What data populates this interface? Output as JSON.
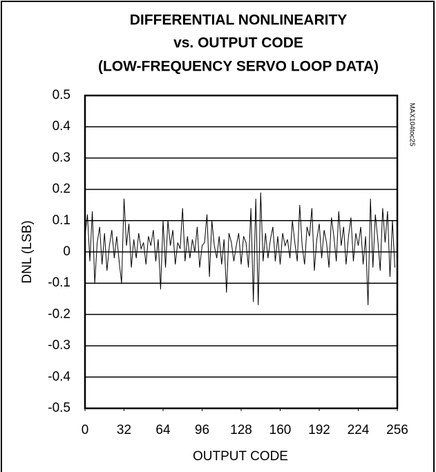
{
  "chart_data": {
    "type": "line",
    "title": [
      "DIFFERENTIAL NONLINEARITY",
      "vs. OUTPUT CODE",
      "(LOW-FREQUENCY SERVO LOOP DATA)"
    ],
    "xlabel": "OUTPUT CODE",
    "ylabel": "DNL (LSB)",
    "annotation": "MAX104toc25",
    "color": "#000000",
    "grid": true,
    "xlim": [
      0,
      256
    ],
    "xticks": [
      0,
      32,
      64,
      96,
      128,
      160,
      192,
      224,
      256
    ],
    "ylim": [
      -0.5,
      0.5
    ],
    "yticks": [
      0.5,
      0.4,
      0.3,
      0.2,
      0.1,
      0,
      -0.1,
      -0.2,
      -0.3,
      -0.4,
      -0.5
    ],
    "x": [
      0,
      2,
      4,
      6,
      8,
      10,
      12,
      14,
      16,
      18,
      20,
      22,
      24,
      26,
      28,
      30,
      32,
      34,
      36,
      38,
      40,
      42,
      44,
      46,
      48,
      50,
      52,
      54,
      56,
      58,
      60,
      62,
      64,
      66,
      68,
      70,
      72,
      74,
      76,
      78,
      80,
      82,
      84,
      86,
      88,
      90,
      92,
      94,
      96,
      98,
      100,
      102,
      104,
      106,
      108,
      110,
      112,
      114,
      116,
      118,
      120,
      122,
      124,
      126,
      128,
      130,
      132,
      134,
      136,
      138,
      140,
      142,
      144,
      146,
      148,
      150,
      152,
      154,
      156,
      158,
      160,
      162,
      164,
      166,
      168,
      170,
      172,
      174,
      176,
      178,
      180,
      182,
      184,
      186,
      188,
      190,
      192,
      194,
      196,
      198,
      200,
      202,
      204,
      206,
      208,
      210,
      212,
      214,
      216,
      218,
      220,
      222,
      224,
      226,
      228,
      230,
      232,
      234,
      236,
      238,
      240,
      242,
      244,
      246,
      248,
      250,
      252,
      254
    ],
    "values": [
      0.05,
      0.12,
      -0.03,
      0.13,
      -0.1,
      0.03,
      0.08,
      -0.04,
      0.06,
      -0.06,
      0.02,
      0.07,
      -0.02,
      0.05,
      -0.03,
      -0.1,
      0.17,
      0.02,
      0.09,
      -0.05,
      0.04,
      -0.02,
      0.06,
      0.01,
      0.03,
      -0.04,
      0.05,
      0.02,
      0.07,
      -0.03,
      0.04,
      -0.12,
      0.1,
      -0.05,
      0.1,
      0.02,
      0.07,
      -0.04,
      0.03,
      0.01,
      0.14,
      -0.03,
      0.05,
      -0.02,
      0.04,
      0.0,
      0.08,
      -0.05,
      0.02,
      0.03,
      0.12,
      -0.08,
      0.1,
      0.02,
      -0.02,
      0.05,
      -0.04,
      0.04,
      -0.13,
      0.06,
      0.03,
      -0.03,
      0.02,
      0.06,
      -0.04,
      0.05,
      0.03,
      -0.05,
      0.14,
      -0.16,
      0.17,
      -0.17,
      0.19,
      -0.03,
      0.06,
      -0.02,
      0.04,
      0.08,
      -0.03,
      0.05,
      -0.04,
      0.06,
      0.02,
      0.04,
      -0.02,
      0.1,
      0.03,
      -0.03,
      0.15,
      0.02,
      -0.04,
      0.08,
      0.05,
      0.14,
      -0.06,
      0.04,
      0.09,
      -0.02,
      0.07,
      0.03,
      -0.05,
      0.11,
      0.05,
      -0.03,
      0.13,
      0.02,
      0.08,
      -0.04,
      0.05,
      0.11,
      -0.03,
      0.06,
      0.02,
      0.08,
      -0.04,
      0.05,
      -0.17,
      0.17,
      -0.05,
      0.12,
      0.04,
      -0.06,
      0.14,
      0.03,
      0.13,
      -0.08,
      0.1,
      -0.05
    ]
  }
}
